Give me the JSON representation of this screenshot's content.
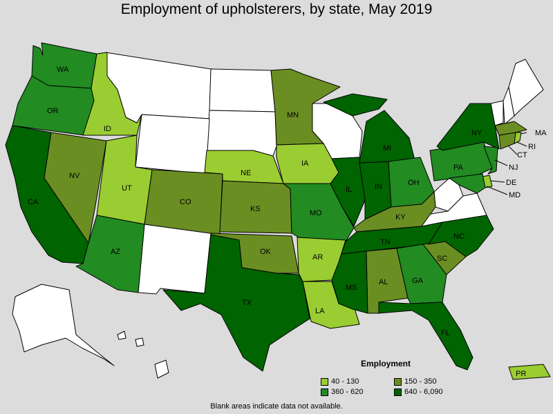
{
  "title": "Employment of upholsterers, by state, May 2019",
  "colors": {
    "c1": "#9acd32",
    "c2": "#6b8e23",
    "c3": "#228b22",
    "c4": "#006400",
    "none": "#ffffff",
    "background": "#dcdcdc"
  },
  "legend": {
    "title": "Employment",
    "items": [
      {
        "label": "40 - 130",
        "color": "#9acd32"
      },
      {
        "label": "150 - 350",
        "color": "#6b8e23"
      },
      {
        "label": "360 - 620",
        "color": "#228b22"
      },
      {
        "label": "640 - 6,090",
        "color": "#006400"
      }
    ]
  },
  "note": "Blank areas indicate data not available.",
  "states": {
    "WA": {
      "label": "WA",
      "bin": "360 - 620"
    },
    "OR": {
      "label": "OR",
      "bin": "360 - 620"
    },
    "CA": {
      "label": "CA",
      "bin": "640 - 6,090"
    },
    "ID": {
      "label": "ID",
      "bin": "40 - 130"
    },
    "NV": {
      "label": "NV",
      "bin": "150 - 350"
    },
    "UT": {
      "label": "UT",
      "bin": "40 - 130"
    },
    "AZ": {
      "label": "AZ",
      "bin": "360 - 620"
    },
    "CO": {
      "label": "CO",
      "bin": "150 - 350"
    },
    "NE": {
      "label": "NE",
      "bin": "40 - 130"
    },
    "KS": {
      "label": "KS",
      "bin": "150 - 350"
    },
    "OK": {
      "label": "OK",
      "bin": "150 - 350"
    },
    "TX": {
      "label": "TX",
      "bin": "640 - 6,090"
    },
    "MN": {
      "label": "MN",
      "bin": "150 - 350"
    },
    "IA": {
      "label": "IA",
      "bin": "40 - 130"
    },
    "MO": {
      "label": "MO",
      "bin": "360 - 620"
    },
    "AR": {
      "label": "AR",
      "bin": "40 - 130"
    },
    "LA": {
      "label": "LA",
      "bin": "40 - 130"
    },
    "IL": {
      "label": "IL",
      "bin": "640 - 6,090"
    },
    "IN": {
      "label": "IN",
      "bin": "640 - 6,090"
    },
    "MI": {
      "label": "MI",
      "bin": "640 - 6,090"
    },
    "OH": {
      "label": "OH",
      "bin": "360 - 620"
    },
    "KY": {
      "label": "KY",
      "bin": "150 - 350"
    },
    "TN": {
      "label": "TN",
      "bin": "640 - 6,090"
    },
    "MS": {
      "label": "MS",
      "bin": "640 - 6,090"
    },
    "AL": {
      "label": "AL",
      "bin": "150 - 350"
    },
    "GA": {
      "label": "GA",
      "bin": "360 - 620"
    },
    "FL": {
      "label": "FL",
      "bin": "640 - 6,090"
    },
    "SC": {
      "label": "SC",
      "bin": "150 - 350"
    },
    "NC": {
      "label": "NC",
      "bin": "640 - 6,090"
    },
    "PA": {
      "label": "PA",
      "bin": "360 - 620"
    },
    "NY": {
      "label": "NY",
      "bin": "640 - 6,090"
    },
    "NJ": {
      "label": "NJ",
      "bin": "360 - 620"
    },
    "DE": {
      "label": "DE",
      "bin": "40 - 130"
    },
    "MD": {
      "label": "MD",
      "bin": "360 - 620"
    },
    "CT": {
      "label": "CT",
      "bin": "150 - 350"
    },
    "RI": {
      "label": "RI",
      "bin": "40 - 130"
    },
    "MA": {
      "label": "MA",
      "bin": "150 - 350"
    },
    "PR": {
      "label": "PR",
      "bin": "40 - 130"
    }
  }
}
